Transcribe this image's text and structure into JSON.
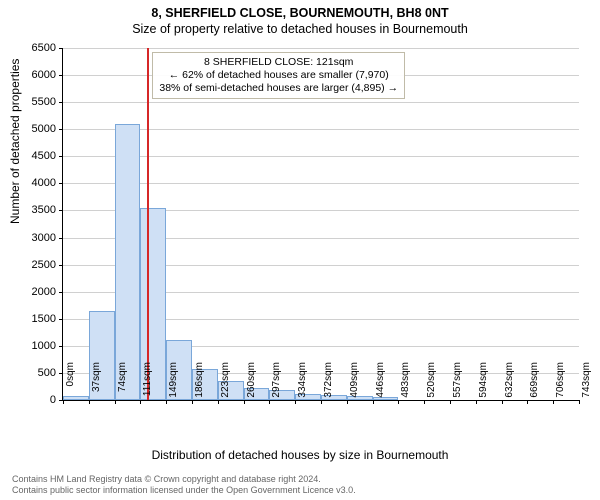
{
  "title_main": "8, SHERFIELD CLOSE, BOURNEMOUTH, BH8 0NT",
  "title_sub": "Size of property relative to detached houses in Bournemouth",
  "ylabel": "Number of detached properties",
  "xlabel": "Distribution of detached houses by size in Bournemouth",
  "footer_line1": "Contains HM Land Registry data © Crown copyright and database right 2024.",
  "footer_line2": "Contains public sector information licensed under the Open Government Licence v3.0.",
  "chart": {
    "type": "histogram",
    "background_color": "#ffffff",
    "grid_color": "#d0d0d0",
    "bar_fill": "#cfe0f5",
    "bar_border": "#7aa7d9",
    "marker_color": "#d62728",
    "ylim": [
      0,
      6500
    ],
    "ytick_step": 500,
    "xtick_step": 37,
    "x_max_tick": 743,
    "x_unit": "sqm",
    "categories": [
      "0sqm",
      "37sqm",
      "74sqm",
      "111sqm",
      "149sqm",
      "186sqm",
      "223sqm",
      "260sqm",
      "297sqm",
      "334sqm",
      "372sqm",
      "409sqm",
      "446sqm",
      "483sqm",
      "520sqm",
      "557sqm",
      "594sqm",
      "632sqm",
      "669sqm",
      "706sqm",
      "743sqm"
    ],
    "values": [
      80,
      1650,
      5100,
      3550,
      1100,
      580,
      350,
      220,
      180,
      120,
      100,
      80,
      60,
      0,
      0,
      0,
      0,
      0,
      0,
      0
    ],
    "marker_value_x": 121,
    "label_fontsize": 12,
    "tick_fontsize": 11
  },
  "annotation": {
    "line1": "8 SHERFIELD CLOSE: 121sqm",
    "line2": "← 62% of detached houses are smaller (7,970)",
    "line3": "38% of semi-detached houses are larger (4,895) →",
    "border_color": "#c0bba8",
    "bg_color": "rgba(255,255,255,0.92)"
  }
}
